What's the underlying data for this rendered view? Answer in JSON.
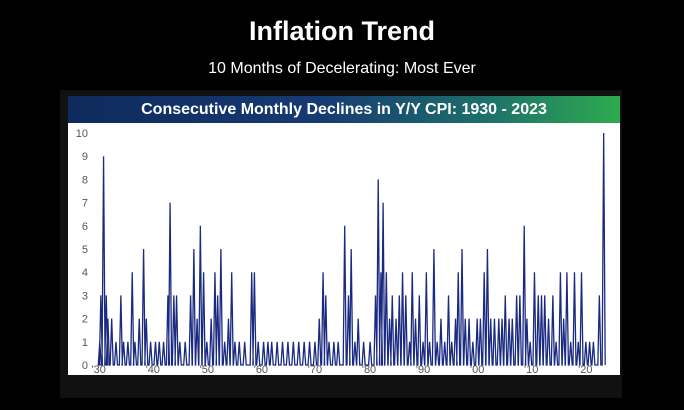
{
  "header": {
    "title": "Inflation Trend",
    "subtitle": "10 Months of Decelerating: Most Ever"
  },
  "colors": {
    "line": "#1a2a80",
    "background": "#000000",
    "panel": "#ffffff",
    "banner_start": "#0f2a5c",
    "banner_end": "#2eab4f"
  },
  "chart_data": {
    "type": "line",
    "title": "Consecutive Monthly Declines in Y/Y CPI: 1930 - 2023",
    "xlabel": "",
    "ylabel": "",
    "xlim": [
      1929.5,
      2024.2
    ],
    "ylim": [
      0,
      10
    ],
    "x_ticks": [
      1930,
      1940,
      1950,
      1960,
      1970,
      1980,
      1990,
      2000,
      2010,
      2020
    ],
    "x_tick_labels": [
      "'30",
      "'40",
      "'50",
      "'60",
      "'70",
      "'80",
      "'90",
      "'00",
      "'10",
      "'20"
    ],
    "y_ticks": [
      0,
      1,
      2,
      3,
      4,
      5,
      6,
      7,
      8,
      9,
      10
    ],
    "grid": false,
    "legend": "none",
    "peaks": [
      [
        1930.2,
        1
      ],
      [
        1930.4,
        3
      ],
      [
        1930.9,
        9
      ],
      [
        1931.4,
        3
      ],
      [
        1931.7,
        2
      ],
      [
        1932.4,
        2
      ],
      [
        1933.2,
        1
      ],
      [
        1934.1,
        3
      ],
      [
        1934.6,
        1
      ],
      [
        1935.4,
        1
      ],
      [
        1936.2,
        4
      ],
      [
        1936.7,
        1
      ],
      [
        1937.5,
        2
      ],
      [
        1938.3,
        5
      ],
      [
        1938.8,
        2
      ],
      [
        1939.6,
        1
      ],
      [
        1940.5,
        1
      ],
      [
        1941.2,
        1
      ],
      [
        1942.0,
        1
      ],
      [
        1942.8,
        3
      ],
      [
        1943.2,
        7
      ],
      [
        1943.9,
        3
      ],
      [
        1944.4,
        3
      ],
      [
        1945.0,
        1
      ],
      [
        1946.0,
        1
      ],
      [
        1947.0,
        3
      ],
      [
        1947.6,
        5
      ],
      [
        1948.2,
        2
      ],
      [
        1948.8,
        6
      ],
      [
        1949.4,
        4
      ],
      [
        1950.0,
        1
      ],
      [
        1950.8,
        2
      ],
      [
        1951.5,
        4
      ],
      [
        1952.0,
        3
      ],
      [
        1952.6,
        5
      ],
      [
        1953.3,
        1
      ],
      [
        1954.0,
        2
      ],
      [
        1954.6,
        4
      ],
      [
        1955.2,
        1
      ],
      [
        1956.0,
        1
      ],
      [
        1957.0,
        1
      ],
      [
        1958.3,
        4
      ],
      [
        1958.8,
        4
      ],
      [
        1959.5,
        1
      ],
      [
        1960.5,
        1
      ],
      [
        1961.3,
        1
      ],
      [
        1962.0,
        1
      ],
      [
        1963.0,
        1
      ],
      [
        1964.0,
        1
      ],
      [
        1965.0,
        1
      ],
      [
        1966.0,
        1
      ],
      [
        1967.0,
        1
      ],
      [
        1968.0,
        1
      ],
      [
        1969.0,
        1
      ],
      [
        1970.0,
        1
      ],
      [
        1970.8,
        2
      ],
      [
        1971.5,
        4
      ],
      [
        1972.0,
        3
      ],
      [
        1972.6,
        1
      ],
      [
        1973.5,
        1
      ],
      [
        1974.3,
        1
      ],
      [
        1975.5,
        6
      ],
      [
        1976.2,
        3
      ],
      [
        1976.7,
        5
      ],
      [
        1977.4,
        1
      ],
      [
        1978.0,
        2
      ],
      [
        1979.0,
        1
      ],
      [
        1980.2,
        1
      ],
      [
        1981.2,
        3
      ],
      [
        1981.7,
        8
      ],
      [
        1982.2,
        4
      ],
      [
        1982.6,
        7
      ],
      [
        1983.2,
        4
      ],
      [
        1983.8,
        2
      ],
      [
        1984.3,
        3
      ],
      [
        1985.0,
        2
      ],
      [
        1985.6,
        3
      ],
      [
        1986.2,
        4
      ],
      [
        1986.8,
        3
      ],
      [
        1987.5,
        1
      ],
      [
        1988.0,
        4
      ],
      [
        1988.6,
        2
      ],
      [
        1989.3,
        3
      ],
      [
        1990.0,
        1
      ],
      [
        1990.6,
        4
      ],
      [
        1991.2,
        1
      ],
      [
        1992.0,
        5
      ],
      [
        1992.6,
        1
      ],
      [
        1993.3,
        2
      ],
      [
        1994.0,
        1
      ],
      [
        1994.7,
        3
      ],
      [
        1995.3,
        1
      ],
      [
        1996.0,
        2
      ],
      [
        1996.5,
        4
      ],
      [
        1997.2,
        5
      ],
      [
        1997.8,
        2
      ],
      [
        1998.5,
        2
      ],
      [
        1999.2,
        1
      ],
      [
        2000.0,
        2
      ],
      [
        2000.6,
        2
      ],
      [
        2001.3,
        4
      ],
      [
        2001.9,
        5
      ],
      [
        2002.5,
        2
      ],
      [
        2003.2,
        2
      ],
      [
        2004.0,
        2
      ],
      [
        2004.6,
        2
      ],
      [
        2005.2,
        3
      ],
      [
        2005.9,
        2
      ],
      [
        2006.5,
        2
      ],
      [
        2007.3,
        3
      ],
      [
        2007.9,
        3
      ],
      [
        2008.7,
        6
      ],
      [
        2009.2,
        2
      ],
      [
        2009.8,
        1
      ],
      [
        2010.6,
        4
      ],
      [
        2011.3,
        3
      ],
      [
        2011.9,
        3
      ],
      [
        2012.5,
        3
      ],
      [
        2013.2,
        2
      ],
      [
        2014.0,
        3
      ],
      [
        2014.6,
        1
      ],
      [
        2015.4,
        4
      ],
      [
        2016.0,
        2
      ],
      [
        2016.6,
        4
      ],
      [
        2017.3,
        1
      ],
      [
        2018.0,
        4
      ],
      [
        2018.7,
        1
      ],
      [
        2019.3,
        4
      ],
      [
        2020.1,
        1
      ],
      [
        2020.8,
        1
      ],
      [
        2021.5,
        1
      ],
      [
        2022.6,
        3
      ],
      [
        2023.4,
        10
      ]
    ]
  }
}
